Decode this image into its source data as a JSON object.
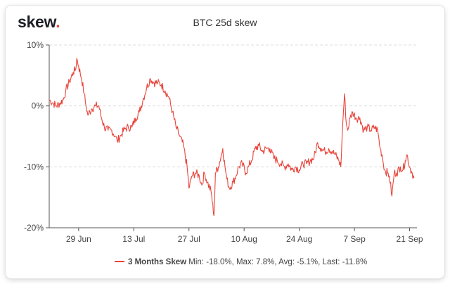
{
  "brand": {
    "name": "skew",
    "dot": "."
  },
  "chart_data": {
    "type": "line",
    "title": "BTC 25d skew",
    "xlabel": "",
    "ylabel": "",
    "ylim": [
      -20,
      10
    ],
    "y_ticks": [
      {
        "value": 10,
        "label": "10%"
      },
      {
        "value": 0,
        "label": "0%"
      },
      {
        "value": -10,
        "label": "-10%"
      },
      {
        "value": -20,
        "label": "-20%"
      }
    ],
    "x_range": [
      0,
      100
    ],
    "x_ticks": [
      {
        "value": 8,
        "label": "29 Jun"
      },
      {
        "value": 23,
        "label": "13 Jul"
      },
      {
        "value": 38,
        "label": "27 Jul"
      },
      {
        "value": 53,
        "label": "10 Aug"
      },
      {
        "value": 68,
        "label": "24 Aug"
      },
      {
        "value": 83,
        "label": "7 Sep"
      },
      {
        "value": 98,
        "label": "21 Sep"
      }
    ],
    "grid": true,
    "legend": "bottom-center",
    "series": [
      {
        "name": "3 Months Skew",
        "color": "#e8443a",
        "stats": "Min: -18.0%, Max: 7.8%, Avg: -5.1%, Last: -11.8%",
        "points": [
          [
            0,
            1
          ],
          [
            1,
            0.5
          ],
          [
            2,
            0
          ],
          [
            3,
            0.5
          ],
          [
            3.8,
            1
          ],
          [
            4.5,
            2.5
          ],
          [
            5.5,
            4
          ],
          [
            6.5,
            5.5
          ],
          [
            7.2,
            6
          ],
          [
            7.5,
            7.8
          ],
          [
            8,
            6.5
          ],
          [
            8.8,
            4.5
          ],
          [
            9.5,
            2
          ],
          [
            10,
            0
          ],
          [
            10.5,
            -1.5
          ],
          [
            11.5,
            -0.5
          ],
          [
            12.5,
            0
          ],
          [
            13.5,
            0
          ],
          [
            14,
            -1.5
          ],
          [
            15,
            -3.5
          ],
          [
            16,
            -4
          ],
          [
            17,
            -4
          ],
          [
            18,
            -5
          ],
          [
            18.5,
            -5.8
          ],
          [
            19.5,
            -4.8
          ],
          [
            20.5,
            -3.8
          ],
          [
            21.5,
            -3.5
          ],
          [
            22.5,
            -3.5
          ],
          [
            23.5,
            -2
          ],
          [
            24.5,
            -1
          ],
          [
            25.5,
            1
          ],
          [
            26.5,
            3
          ],
          [
            27.5,
            4.5
          ],
          [
            28.5,
            3.8
          ],
          [
            29.5,
            3.8
          ],
          [
            30.5,
            3.5
          ],
          [
            31.5,
            2.5
          ],
          [
            32.5,
            1.5
          ],
          [
            33.5,
            -1
          ],
          [
            34.5,
            -3.5
          ],
          [
            35.5,
            -5
          ],
          [
            36.5,
            -6.5
          ],
          [
            37.5,
            -10
          ],
          [
            38,
            -13.5
          ],
          [
            38.8,
            -11.5
          ],
          [
            39.8,
            -11
          ],
          [
            40.8,
            -11.5
          ],
          [
            41.5,
            -13
          ],
          [
            42.2,
            -11
          ],
          [
            43,
            -12.5
          ],
          [
            44,
            -14
          ],
          [
            44.8,
            -18
          ],
          [
            45.2,
            -11
          ],
          [
            46,
            -10
          ],
          [
            47.2,
            -7
          ],
          [
            47.8,
            -10
          ],
          [
            48.3,
            -12
          ],
          [
            49,
            -13.5
          ],
          [
            50,
            -12.5
          ],
          [
            50.8,
            -11.5
          ],
          [
            51.5,
            -10
          ],
          [
            52.5,
            -9.5
          ],
          [
            53.5,
            -11
          ],
          [
            54.2,
            -10
          ],
          [
            55,
            -9
          ],
          [
            56,
            -7
          ],
          [
            57,
            -6.5
          ],
          [
            58,
            -7.5
          ],
          [
            59,
            -7
          ],
          [
            60,
            -7
          ],
          [
            61,
            -8.5
          ],
          [
            62,
            -9
          ],
          [
            63,
            -9.5
          ],
          [
            64,
            -10
          ],
          [
            65,
            -9.5
          ],
          [
            66,
            -10.5
          ],
          [
            67,
            -10
          ],
          [
            68,
            -10.5
          ],
          [
            69,
            -9.5
          ],
          [
            70,
            -9.5
          ],
          [
            71,
            -9
          ],
          [
            72,
            -8.5
          ],
          [
            73,
            -6
          ],
          [
            74,
            -7
          ],
          [
            75,
            -7.5
          ],
          [
            76,
            -7
          ],
          [
            77,
            -7.5
          ],
          [
            77.8,
            -8
          ],
          [
            78.8,
            -9
          ],
          [
            79.3,
            -10
          ],
          [
            79.8,
            -3
          ],
          [
            80.3,
            2
          ],
          [
            80.8,
            -3
          ],
          [
            81.2,
            -4
          ],
          [
            81.8,
            -2
          ],
          [
            82.5,
            -1
          ],
          [
            83.5,
            -2
          ],
          [
            84.5,
            -2
          ],
          [
            85.5,
            -4
          ],
          [
            86.5,
            -3.5
          ],
          [
            87.5,
            -4
          ],
          [
            88.5,
            -3.5
          ],
          [
            89.3,
            -4
          ],
          [
            90,
            -7
          ],
          [
            90.5,
            -8
          ],
          [
            91.2,
            -10.5
          ],
          [
            92,
            -11
          ],
          [
            92.5,
            -11.5
          ],
          [
            93.2,
            -14.8
          ],
          [
            93.8,
            -11
          ],
          [
            94.5,
            -11
          ],
          [
            95.5,
            -10
          ],
          [
            96.2,
            -10.5
          ],
          [
            96.8,
            -9
          ],
          [
            97.3,
            -8
          ],
          [
            98,
            -10
          ],
          [
            98.7,
            -11
          ],
          [
            99.2,
            -11.8
          ]
        ]
      }
    ]
  }
}
